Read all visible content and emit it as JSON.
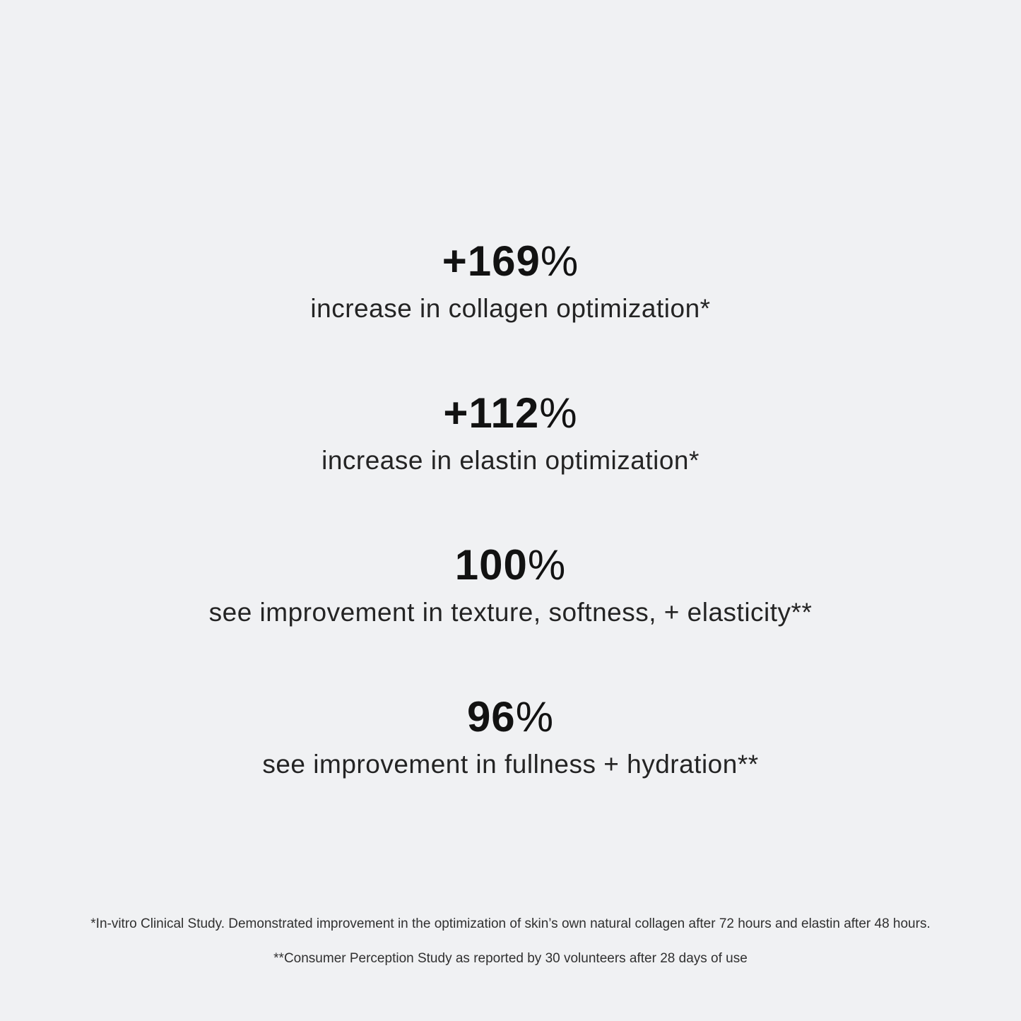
{
  "page": {
    "background_color": "#f0f1f3",
    "text_color": "#161616"
  },
  "stats": [
    {
      "value": "+169",
      "unit": "%",
      "label": "increase in collagen optimization*"
    },
    {
      "value": "+112",
      "unit": "%",
      "label": "increase in elastin optimization*"
    },
    {
      "value": "100",
      "unit": "%",
      "label": "see improvement in texture, softness, + elasticity**"
    },
    {
      "value": "96",
      "unit": "%",
      "label": "see improvement in fullness + hydration**"
    }
  ],
  "footnotes": [
    "*In-vitro Clinical Study. Demonstrated improvement in the optimization of skin’s own natural collagen after 72 hours and elastin after 48 hours.",
    "**Consumer Perception Study as reported by 30 volunteers after 28 days of use"
  ]
}
